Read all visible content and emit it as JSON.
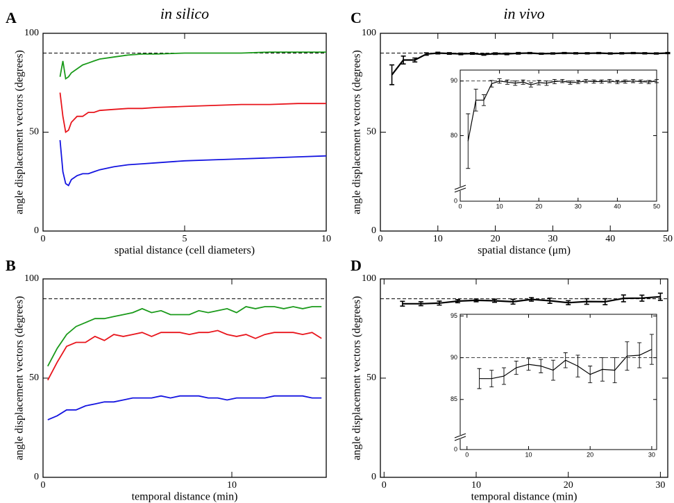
{
  "chart_data": [
    {
      "type": "line",
      "panel_label": "A",
      "title": "in silico",
      "xlabel": "spatial distance (cell diameters)",
      "ylabel": "angle displacement vectors (degrees)",
      "xlim": [
        0,
        10
      ],
      "ylim": [
        0,
        100
      ],
      "xticks": [
        0,
        5,
        10
      ],
      "yticks": [
        0,
        50,
        100
      ],
      "reference_line": 90,
      "x": [
        0.6,
        0.7,
        0.8,
        0.9,
        1.0,
        1.2,
        1.4,
        1.6,
        1.8,
        2.0,
        2.5,
        3,
        3.5,
        4,
        5,
        6,
        7,
        8,
        9,
        10
      ],
      "series": [
        {
          "color": "#1a9a1a",
          "values": [
            78,
            86,
            77,
            78,
            80,
            82,
            84,
            85,
            86,
            87,
            88,
            89,
            89.5,
            89.5,
            90,
            90,
            90,
            90.5,
            90.5,
            90.5
          ]
        },
        {
          "color": "#e8141b",
          "values": [
            70,
            58,
            50,
            51,
            55,
            58,
            58,
            60,
            60,
            61,
            61.5,
            62,
            62,
            62.5,
            63,
            63.5,
            64,
            64,
            64.5,
            64.5
          ]
        },
        {
          "color": "#1414e0",
          "values": [
            46,
            30,
            24,
            23,
            26,
            28,
            29,
            29,
            30,
            31,
            32.5,
            33.5,
            34,
            34.5,
            35.5,
            36,
            36.5,
            37,
            37.5,
            38
          ]
        }
      ]
    },
    {
      "type": "line",
      "panel_label": "B",
      "xlabel": "temporal distance (min)",
      "ylabel": "angle displacement vectors (degrees)",
      "xlim": [
        0,
        15
      ],
      "ylim": [
        0,
        100
      ],
      "xticks": [
        0,
        10
      ],
      "yticks": [
        0,
        50,
        100
      ],
      "reference_line": 90,
      "x": [
        0.25,
        0.75,
        1.25,
        1.75,
        2.25,
        2.75,
        3.25,
        3.75,
        4.25,
        4.75,
        5.25,
        5.75,
        6.25,
        6.75,
        7.25,
        7.75,
        8.25,
        8.75,
        9.25,
        9.75,
        10.25,
        10.75,
        11.25,
        11.75,
        12.25,
        12.75,
        13.25,
        13.75,
        14.25,
        14.75
      ],
      "series": [
        {
          "color": "#1a9a1a",
          "values": [
            56,
            65,
            72,
            76,
            78,
            80,
            80,
            81,
            82,
            83,
            85,
            83,
            84,
            82,
            82,
            82,
            84,
            83,
            84,
            85,
            83,
            86,
            85,
            86,
            86,
            85,
            86,
            85,
            86,
            86
          ]
        },
        {
          "color": "#e8141b",
          "values": [
            49,
            58,
            66,
            68,
            68,
            71,
            69,
            72,
            71,
            72,
            73,
            71,
            73,
            73,
            73,
            72,
            73,
            73,
            74,
            72,
            71,
            72,
            70,
            72,
            73,
            73,
            73,
            72,
            73,
            70
          ]
        },
        {
          "color": "#1414e0",
          "values": [
            29,
            31,
            34,
            34,
            36,
            37,
            38,
            38,
            39,
            40,
            40,
            40,
            41,
            40,
            41,
            41,
            41,
            40,
            40,
            39,
            40,
            40,
            40,
            40,
            41,
            41,
            41,
            41,
            40,
            40
          ]
        }
      ]
    },
    {
      "type": "line",
      "panel_label": "C",
      "title": "in vivo",
      "xlabel": "spatial distance (μm)",
      "ylabel": "angle displacement vectors (degrees)",
      "xlim": [
        0,
        50
      ],
      "ylim": [
        0,
        100
      ],
      "xticks": [
        0,
        10,
        20,
        30,
        40,
        50
      ],
      "yticks": [
        0,
        50,
        100
      ],
      "reference_line": 90,
      "x": [
        2,
        4,
        6,
        8,
        10,
        12,
        14,
        16,
        18,
        20,
        22,
        24,
        26,
        28,
        30,
        32,
        34,
        36,
        38,
        40,
        42,
        44,
        46,
        48,
        50
      ],
      "series": [
        {
          "color": "#000000",
          "values": [
            79,
            86.5,
            86.5,
            89.5,
            90,
            89.8,
            89.6,
            89.8,
            89.3,
            89.7,
            89.6,
            89.9,
            90,
            89.7,
            89.8,
            90,
            89.9,
            89.9,
            90,
            89.8,
            89.9,
            90,
            89.9,
            89.8,
            90
          ],
          "errors": [
            5,
            2,
            1,
            0.6,
            0.4,
            0.4,
            0.4,
            0.4,
            0.4,
            0.4,
            0.4,
            0.4,
            0.3,
            0.3,
            0.3,
            0.3,
            0.3,
            0.3,
            0.3,
            0.3,
            0.3,
            0.3,
            0.3,
            0.3,
            0.3
          ]
        }
      ],
      "inset": {
        "xlim": [
          0,
          50
        ],
        "ylim": [
          0,
          92
        ],
        "xticks": [
          0,
          10,
          20,
          30,
          40,
          50
        ],
        "yticks": [
          0,
          80,
          90
        ],
        "broken_axis": true
      }
    },
    {
      "type": "line",
      "panel_label": "D",
      "xlabel": "temporal distance (min)",
      "ylabel": "angle displacement vectors (degrees)",
      "xlim": [
        -0.4,
        30.8
      ],
      "ylim": [
        0,
        100
      ],
      "xticks": [
        0,
        10,
        20,
        30
      ],
      "yticks": [
        0,
        50,
        100
      ],
      "reference_line": 90,
      "x": [
        2,
        4,
        6,
        8,
        10,
        12,
        14,
        16,
        18,
        20,
        22,
        24,
        26,
        28,
        30
      ],
      "series": [
        {
          "color": "#000000",
          "values": [
            87.5,
            87.5,
            87.8,
            88.8,
            89.2,
            89.0,
            88.5,
            89.7,
            89.0,
            88.0,
            88.6,
            88.5,
            90.2,
            90.3,
            91.0
          ],
          "errors": [
            1.2,
            1.0,
            1.0,
            0.8,
            0.7,
            0.8,
            1.2,
            0.9,
            1.3,
            1.0,
            1.4,
            1.5,
            1.7,
            1.5,
            1.8
          ]
        }
      ],
      "inset": {
        "xlim": [
          -1.1,
          30.8
        ],
        "ylim": [
          0,
          95.2
        ],
        "xticks": [
          0,
          10,
          20,
          30
        ],
        "yticks": [
          0,
          85,
          90,
          95
        ],
        "broken_axis": true
      }
    }
  ]
}
